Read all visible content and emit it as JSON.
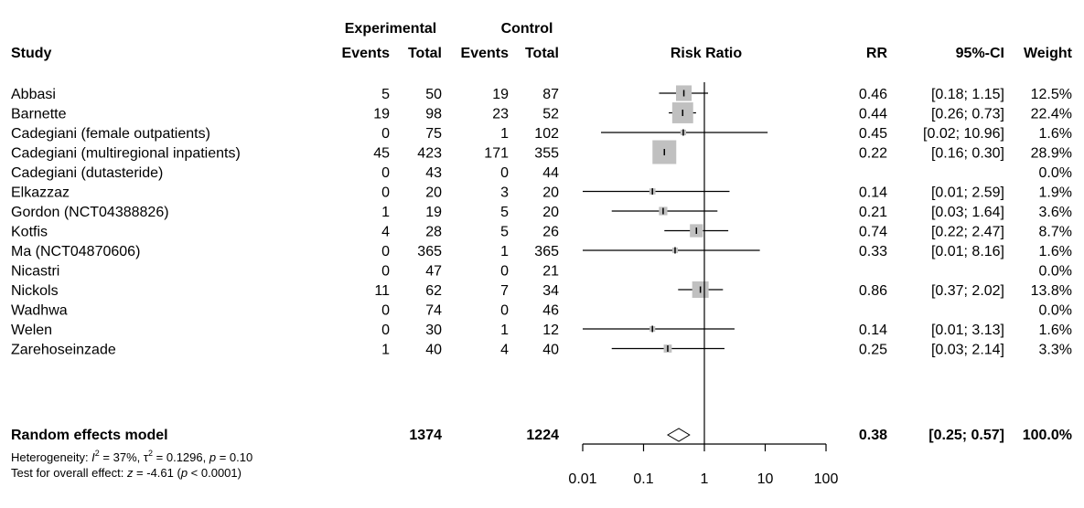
{
  "headers": {
    "study": "Study",
    "experimental": "Experimental",
    "control": "Control",
    "events": "Events",
    "total": "Total",
    "risk_ratio": "Risk Ratio",
    "rr": "RR",
    "ci": "95%-CI",
    "weight": "Weight"
  },
  "pooled": {
    "label": "Random effects model",
    "exp_total": "1374",
    "ctrl_total": "1224",
    "rr_text": "0.38",
    "ci_text": "[0.25; 0.57]",
    "weight_text": "100.0%"
  },
  "heterogeneity": {
    "prefix": "Heterogeneity: ",
    "i_symbol": "I",
    "i_value": " = 37%, ",
    "tau_symbol": "τ",
    "tau_value": " = 0.1296, ",
    "p_symbol": "p",
    "p_value": " = 0.10"
  },
  "overall_test": {
    "prefix": "Test for overall effect: ",
    "z_symbol": "z",
    "z_value": " = -4.61 (",
    "p_symbol": "p",
    "p_value": " < 0.0001)"
  },
  "chart_data": {
    "type": "forest",
    "x_scale": "log",
    "xlim": [
      0.01,
      100
    ],
    "x_ticks": [
      "0.01",
      "0.1",
      "1",
      "10",
      "100"
    ],
    "reference_line": 1,
    "studies": [
      {
        "name": "Abbasi",
        "exp_events": "5",
        "exp_total": "50",
        "ctrl_events": "19",
        "ctrl_total": "87",
        "rr": 0.46,
        "lower": 0.18,
        "upper": 1.15,
        "weight": 12.5,
        "rr_text": "0.46",
        "ci_text": "[0.18; 1.15]",
        "weight_text": "12.5%"
      },
      {
        "name": "Barnette",
        "exp_events": "19",
        "exp_total": "98",
        "ctrl_events": "23",
        "ctrl_total": "52",
        "rr": 0.44,
        "lower": 0.26,
        "upper": 0.73,
        "weight": 22.4,
        "rr_text": "0.44",
        "ci_text": "[0.26; 0.73]",
        "weight_text": "22.4%"
      },
      {
        "name": "Cadegiani (female outpatients)",
        "exp_events": "0",
        "exp_total": "75",
        "ctrl_events": "1",
        "ctrl_total": "102",
        "rr": 0.45,
        "lower": 0.02,
        "upper": 10.96,
        "weight": 1.6,
        "rr_text": "0.45",
        "ci_text": "[0.02; 10.96]",
        "weight_text": "1.6%"
      },
      {
        "name": "Cadegiani (multiregional inpatients)",
        "exp_events": "45",
        "exp_total": "423",
        "ctrl_events": "171",
        "ctrl_total": "355",
        "rr": 0.22,
        "lower": 0.16,
        "upper": 0.3,
        "weight": 28.9,
        "rr_text": "0.22",
        "ci_text": "[0.16; 0.30]",
        "weight_text": "28.9%"
      },
      {
        "name": "Cadegiani (dutasteride)",
        "exp_events": "0",
        "exp_total": "43",
        "ctrl_events": "0",
        "ctrl_total": "44",
        "rr": null,
        "lower": null,
        "upper": null,
        "weight": 0.0,
        "rr_text": "",
        "ci_text": "",
        "weight_text": "0.0%"
      },
      {
        "name": "Elkazzaz",
        "exp_events": "0",
        "exp_total": "20",
        "ctrl_events": "3",
        "ctrl_total": "20",
        "rr": 0.14,
        "lower": 0.01,
        "upper": 2.59,
        "weight": 1.9,
        "rr_text": "0.14",
        "ci_text": "[0.01; 2.59]",
        "weight_text": "1.9%"
      },
      {
        "name": "Gordon (NCT04388826)",
        "exp_events": "1",
        "exp_total": "19",
        "ctrl_events": "5",
        "ctrl_total": "20",
        "rr": 0.21,
        "lower": 0.03,
        "upper": 1.64,
        "weight": 3.6,
        "rr_text": "0.21",
        "ci_text": "[0.03; 1.64]",
        "weight_text": "3.6%"
      },
      {
        "name": "Kotfis",
        "exp_events": "4",
        "exp_total": "28",
        "ctrl_events": "5",
        "ctrl_total": "26",
        "rr": 0.74,
        "lower": 0.22,
        "upper": 2.47,
        "weight": 8.7,
        "rr_text": "0.74",
        "ci_text": "[0.22; 2.47]",
        "weight_text": "8.7%"
      },
      {
        "name": "Ma (NCT04870606)",
        "exp_events": "0",
        "exp_total": "365",
        "ctrl_events": "1",
        "ctrl_total": "365",
        "rr": 0.33,
        "lower": 0.01,
        "upper": 8.16,
        "weight": 1.6,
        "rr_text": "0.33",
        "ci_text": "[0.01; 8.16]",
        "weight_text": "1.6%"
      },
      {
        "name": "Nicastri",
        "exp_events": "0",
        "exp_total": "47",
        "ctrl_events": "0",
        "ctrl_total": "21",
        "rr": null,
        "lower": null,
        "upper": null,
        "weight": 0.0,
        "rr_text": "",
        "ci_text": "",
        "weight_text": "0.0%"
      },
      {
        "name": "Nickols",
        "exp_events": "11",
        "exp_total": "62",
        "ctrl_events": "7",
        "ctrl_total": "34",
        "rr": 0.86,
        "lower": 0.37,
        "upper": 2.02,
        "weight": 13.8,
        "rr_text": "0.86",
        "ci_text": "[0.37; 2.02]",
        "weight_text": "13.8%"
      },
      {
        "name": "Wadhwa",
        "exp_events": "0",
        "exp_total": "74",
        "ctrl_events": "0",
        "ctrl_total": "46",
        "rr": null,
        "lower": null,
        "upper": null,
        "weight": 0.0,
        "rr_text": "",
        "ci_text": "",
        "weight_text": "0.0%"
      },
      {
        "name": "Welen",
        "exp_events": "0",
        "exp_total": "30",
        "ctrl_events": "1",
        "ctrl_total": "12",
        "rr": 0.14,
        "lower": 0.01,
        "upper": 3.13,
        "weight": 1.6,
        "rr_text": "0.14",
        "ci_text": "[0.01; 3.13]",
        "weight_text": "1.6%"
      },
      {
        "name": "Zarehoseinzade",
        "exp_events": "1",
        "exp_total": "40",
        "ctrl_events": "4",
        "ctrl_total": "40",
        "rr": 0.25,
        "lower": 0.03,
        "upper": 2.14,
        "weight": 3.3,
        "rr_text": "0.25",
        "ci_text": "[0.03; 2.14]",
        "weight_text": "3.3%"
      }
    ],
    "pooled_estimate": {
      "rr": 0.38,
      "lower": 0.25,
      "upper": 0.57
    },
    "colors": {
      "square": "#c0c0c0",
      "line": "#000000",
      "diamond_fill": "#ffffff"
    }
  }
}
